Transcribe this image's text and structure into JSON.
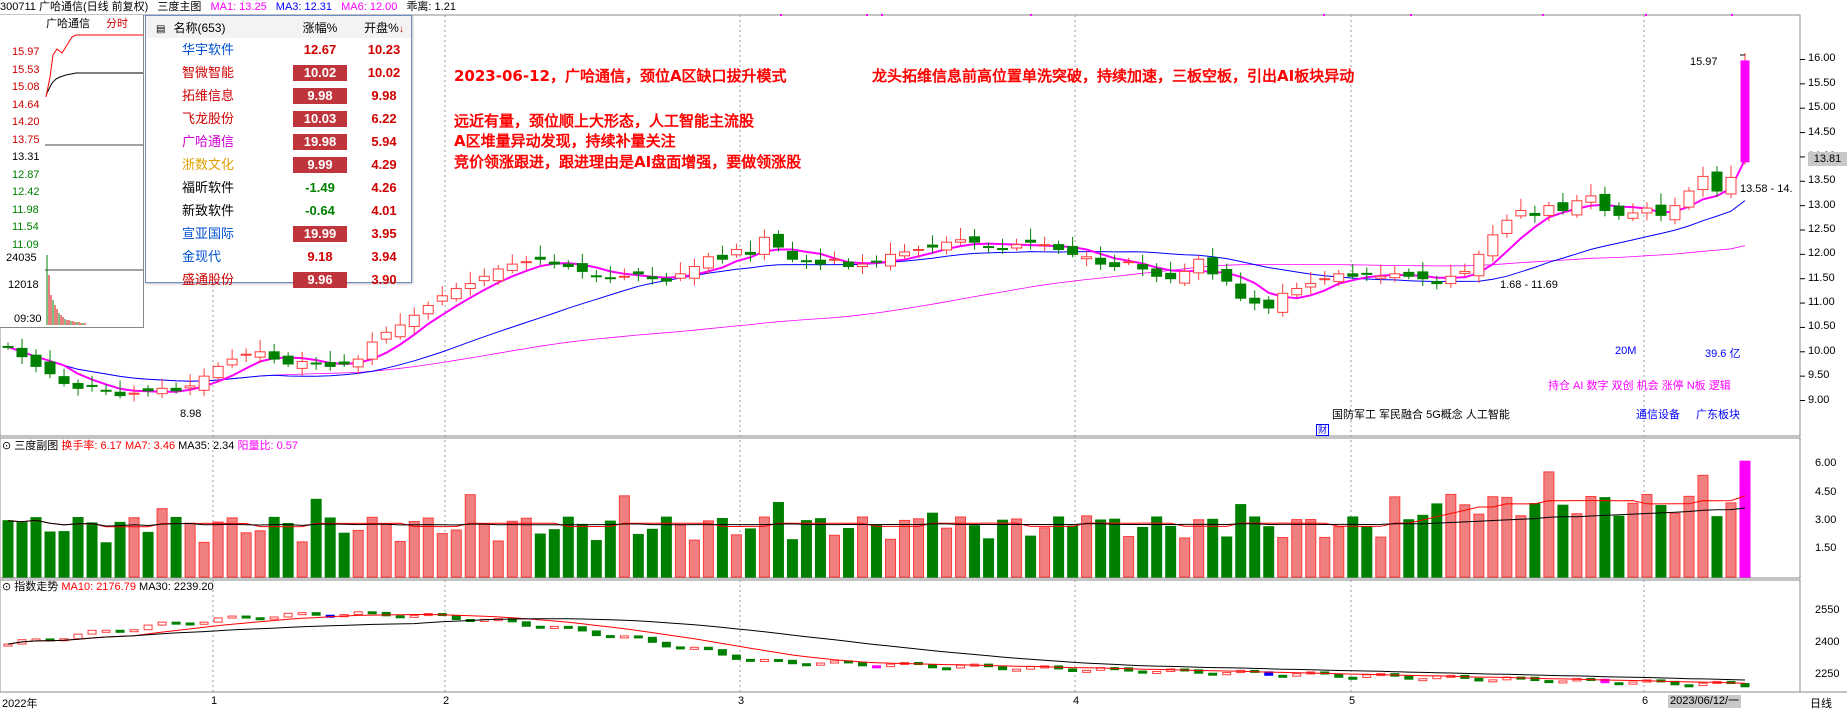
{
  "header": {
    "code_title": "300711 广哈通信(日线 前复权)",
    "panel_name": "三度主图",
    "ma1": "MA1: 13.25",
    "ma3": "MA3: 12.31",
    "ma6": "MA6: 12.00",
    "extra": "乖离: 1.21"
  },
  "colors": {
    "up": "#ff3c3c",
    "down": "#008000",
    "ma1": "#ff00ff",
    "ma3": "#0000ff",
    "ma6": "#ff00ff",
    "accent": "#ff0000",
    "bg": "#ffffff"
  },
  "mini": {
    "title": "广哈通信",
    "tab": "分时",
    "prices": [
      "15.97",
      "15.53",
      "15.08",
      "14.64",
      "14.20",
      "13.75",
      "13.31",
      "12.87",
      "12.42",
      "11.98",
      "11.54",
      "11.09"
    ],
    "vol_top": "24035",
    "vol_mid": "12018",
    "time": "09:30"
  },
  "popup": {
    "col_name": "名称(653)",
    "col_chg": "涨幅%",
    "col_open": "开盘%",
    "rows": [
      {
        "name": "华宇软件",
        "chg": "12.67",
        "open": "10.23",
        "name_color": "#0050d0",
        "boxed": false,
        "chg_color": "#d00000"
      },
      {
        "name": "智微智能",
        "chg": "10.02",
        "open": "10.02",
        "name_color": "#d00000",
        "boxed": true,
        "chg_color": "#ffffff"
      },
      {
        "name": "拓维信息",
        "chg": "9.98",
        "open": "9.98",
        "name_color": "#d00000",
        "boxed": true,
        "chg_color": "#ffffff"
      },
      {
        "name": "飞龙股份",
        "chg": "10.03",
        "open": "6.22",
        "name_color": "#d00000",
        "boxed": true,
        "chg_color": "#ffffff"
      },
      {
        "name": "广哈通信",
        "chg": "19.98",
        "open": "5.94",
        "name_color": "#d000d0",
        "boxed": true,
        "chg_color": "#ffffff"
      },
      {
        "name": "浙数文化",
        "chg": "9.99",
        "open": "4.29",
        "name_color": "#e0a000",
        "boxed": true,
        "chg_color": "#ffffff"
      },
      {
        "name": "福昕软件",
        "chg": "-1.49",
        "open": "4.26",
        "name_color": "#000000",
        "boxed": false,
        "chg_color": "#008000"
      },
      {
        "name": "新致软件",
        "chg": "-0.64",
        "open": "4.01",
        "name_color": "#000000",
        "boxed": false,
        "chg_color": "#008000"
      },
      {
        "name": "宣亚国际",
        "chg": "19.99",
        "open": "3.95",
        "name_color": "#0050d0",
        "boxed": true,
        "chg_color": "#ffffff"
      },
      {
        "name": "金现代",
        "chg": "9.18",
        "open": "3.94",
        "name_color": "#0050d0",
        "boxed": false,
        "chg_color": "#d00000"
      },
      {
        "name": "盛通股份",
        "chg": "9.96",
        "open": "3.90",
        "name_color": "#d00000",
        "boxed": true,
        "chg_color": "#ffffff"
      }
    ]
  },
  "annotations": {
    "line1": "2023-06-12，广哈通信，颈位A区缺口拔升模式",
    "line1b": "龙头拓维信息前高位置单洗突破，持续加速，三板空板，引出AI板块异动",
    "line2": "远近有量，颈位顺上大形态，人工智能主流股",
    "line3": "A区堆量异动发现，持续补量关注",
    "line4": "竞价领涨跟进，跟进理由是AI盘面增强，要做领涨股"
  },
  "main_chart": {
    "price_axis": [
      "16.00",
      "15.50",
      "15.00",
      "14.50",
      "14.00",
      "13.50",
      "13.00",
      "12.50",
      "12.00",
      "11.50",
      "11.00",
      "10.50",
      "10.00",
      "9.50",
      "9.00"
    ],
    "current_price": "13.81",
    "high_label": "15.97",
    "low_label": "8.98",
    "range_label": "13.58 - 14.",
    "mid_label": "1.68 - 11.69",
    "vol_label": "20M",
    "amount_label": "39.6 亿",
    "concepts": "持仓 AI 数字 双创 机会 涨停 N板 逻辑",
    "industry": "通信设备",
    "region": "广东板块",
    "tags": "国防军工 军民融合 5G概念 人工智能",
    "fin_icon": "财"
  },
  "sub_chart": {
    "title": "三度副图",
    "turnover": "换手率: 6.17",
    "ma7": "MA7: 3.46",
    "ma35": "MA35: 2.34",
    "ratio": "阳量比: 0.57",
    "axis": [
      "6.00",
      "4.50",
      "3.00",
      "1.50"
    ]
  },
  "index_chart": {
    "title": "指数走势",
    "ma10": "MA10: 2176.79",
    "ma30": "MA30: 2239.20",
    "axis": [
      "2550",
      "2400",
      "2250"
    ]
  },
  "x_axis": {
    "labels": [
      "2022年",
      "1",
      "2",
      "3",
      "4",
      "5",
      "6"
    ],
    "current_date": "2023/06/12/一",
    "period": "日线"
  },
  "chart_data": {
    "type": "candlestick",
    "title": "300711 广哈通信(日线 前复权)",
    "ylim": [
      8.6,
      16.4
    ],
    "close": [
      10.1,
      9.9,
      9.7,
      9.55,
      9.35,
      9.25,
      9.3,
      9.2,
      9.1,
      9.15,
      9.2,
      9.25,
      9.2,
      9.3,
      9.5,
      9.7,
      9.85,
      9.95,
      10.0,
      9.85,
      9.75,
      9.8,
      9.75,
      9.7,
      9.75,
      9.85,
      10.2,
      10.4,
      10.55,
      10.75,
      10.95,
      11.15,
      11.3,
      11.4,
      11.55,
      11.7,
      11.8,
      11.85,
      11.9,
      11.8,
      11.75,
      11.65,
      11.55,
      11.5,
      11.55,
      11.6,
      11.5,
      11.45,
      11.6,
      11.75,
      11.95,
      11.9,
      12.1,
      12.0,
      12.35,
      12.15,
      11.9,
      11.85,
      11.8,
      11.9,
      11.75,
      11.8,
      11.85,
      12.0,
      12.05,
      12.1,
      12.15,
      12.25,
      12.3,
      12.25,
      12.15,
      12.1,
      12.2,
      12.25,
      12.2,
      12.1,
      12.0,
      11.95,
      11.8,
      11.75,
      11.85,
      11.7,
      11.55,
      11.5,
      11.65,
      11.9,
      11.6,
      11.45,
      11.1,
      11.0,
      10.9,
      11.2,
      11.3,
      11.4,
      11.5,
      11.6,
      11.55,
      11.6,
      11.55,
      11.6,
      11.55,
      11.5,
      11.4,
      11.55,
      11.65,
      12.0,
      12.4,
      12.7,
      12.9,
      12.8,
      13.0,
      12.9,
      13.1,
      13.2,
      12.9,
      12.8,
      12.85,
      12.95,
      12.8,
      13.0,
      13.3,
      13.6,
      13.3,
      13.58,
      15.97
    ],
    "ma_levels": {
      "ma1_last": 13.25,
      "ma3_last": 12.31,
      "ma6_last": 12.0
    }
  }
}
